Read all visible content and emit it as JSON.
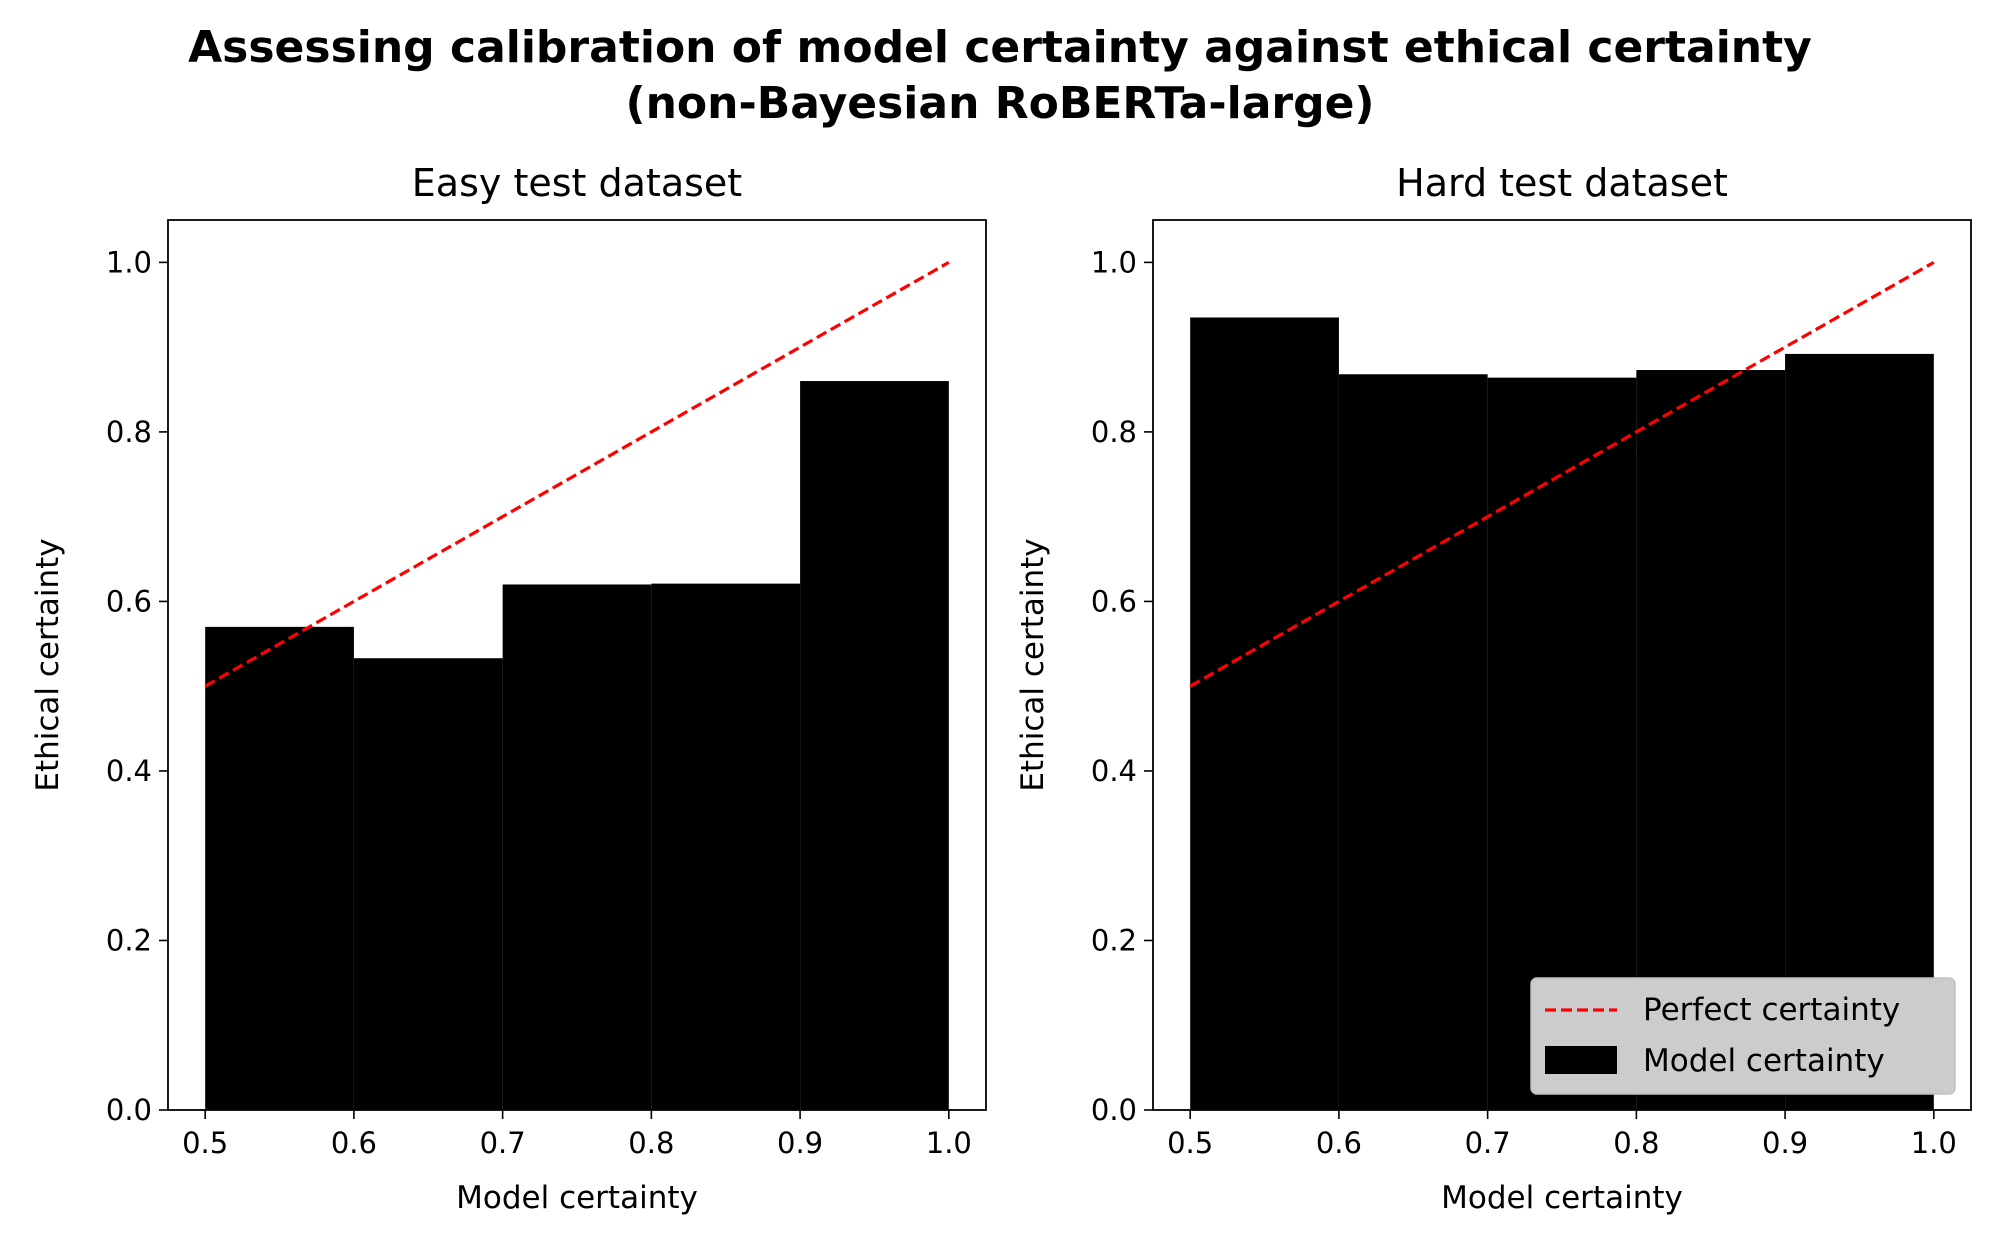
{
  "figure": {
    "title_line1": "Assessing calibration of model certainty against ethical certainty",
    "title_line2": "(non-Bayesian RoBERTa-large)"
  },
  "chart_data": [
    {
      "type": "bar",
      "title": "Easy test dataset",
      "xlabel": "Model certainty",
      "ylabel": "Ethical certainty",
      "xlim": [
        0.475,
        1.025
      ],
      "ylim": [
        0.0,
        1.05
      ],
      "xticks": [
        "0.5",
        "0.6",
        "0.7",
        "0.8",
        "0.9",
        "1.0"
      ],
      "yticks": [
        "0.0",
        "0.2",
        "0.4",
        "0.6",
        "0.8",
        "1.0"
      ],
      "bin_edges": [
        0.5,
        0.6,
        0.7,
        0.8,
        0.9,
        1.0
      ],
      "series": [
        {
          "name": "Model certainty",
          "color": "#000000",
          "values": [
            0.57,
            0.533,
            0.62,
            0.621,
            0.86
          ]
        }
      ],
      "reference_line": {
        "name": "Perfect certainty",
        "color": "#ff0000",
        "style": "dashed",
        "x": [
          0.5,
          1.0
        ],
        "y": [
          0.5,
          1.0
        ]
      },
      "legend": null
    },
    {
      "type": "bar",
      "title": "Hard test dataset",
      "xlabel": "Model certainty",
      "ylabel": "Ethical certainty",
      "xlim": [
        0.475,
        1.025
      ],
      "ylim": [
        0.0,
        1.05
      ],
      "xticks": [
        "0.5",
        "0.6",
        "0.7",
        "0.8",
        "0.9",
        "1.0"
      ],
      "yticks": [
        "0.0",
        "0.2",
        "0.4",
        "0.6",
        "0.8",
        "1.0"
      ],
      "bin_edges": [
        0.5,
        0.6,
        0.7,
        0.8,
        0.9,
        1.0
      ],
      "series": [
        {
          "name": "Model certainty",
          "color": "#000000",
          "values": [
            0.935,
            0.868,
            0.864,
            0.873,
            0.892
          ]
        }
      ],
      "reference_line": {
        "name": "Perfect certainty",
        "color": "#ff0000",
        "style": "dashed",
        "x": [
          0.5,
          1.0
        ],
        "y": [
          0.5,
          1.0
        ]
      },
      "legend": {
        "placement": "lower-right",
        "entries": [
          "Perfect certainty",
          "Model certainty"
        ]
      }
    }
  ]
}
